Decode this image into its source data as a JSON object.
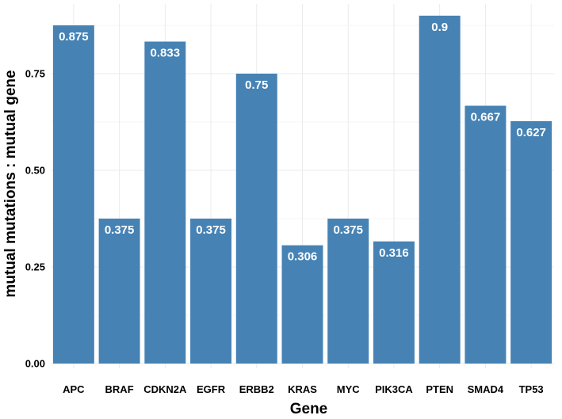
{
  "chart_data": {
    "type": "bar",
    "xlabel": "Gene",
    "ylabel": "mutual mutations : mutual gene",
    "categories": [
      "APC",
      "BRAF",
      "CDKN2A",
      "EGFR",
      "ERBB2",
      "KRAS",
      "MYC",
      "PIK3CA",
      "PTEN",
      "SMAD4",
      "TP53"
    ],
    "values": [
      0.875,
      0.375,
      0.833,
      0.375,
      0.75,
      0.306,
      0.375,
      0.316,
      0.9,
      0.667,
      0.627
    ],
    "value_labels": [
      "0.875",
      "0.375",
      "0.833",
      "0.375",
      "0.75",
      "0.306",
      "0.375",
      "0.316",
      "0.9",
      "0.667",
      "0.627"
    ],
    "yticks": [
      "0.00",
      "0.25",
      "0.50",
      "0.75"
    ],
    "ytick_values": [
      0,
      0.25,
      0.5,
      0.75
    ],
    "ylim": [
      0,
      0.9
    ],
    "grid": true,
    "bar_color": "#4682B4",
    "label_color": "#FFFFFF"
  }
}
